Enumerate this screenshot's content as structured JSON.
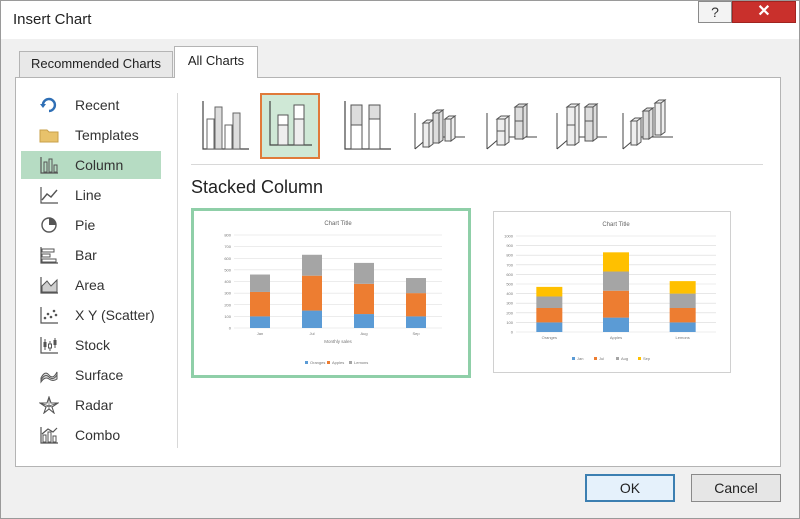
{
  "dialog": {
    "title": "Insert Chart",
    "help_label": "?",
    "close_label": "✕"
  },
  "tabs": [
    {
      "label": "Recommended Charts",
      "selected": false
    },
    {
      "label": "All Charts",
      "selected": true
    }
  ],
  "sidebar": {
    "items": [
      {
        "label": "Recent",
        "icon": "recent-icon"
      },
      {
        "label": "Templates",
        "icon": "folder-icon"
      },
      {
        "label": "Column",
        "icon": "column-chart-icon",
        "selected": true
      },
      {
        "label": "Line",
        "icon": "line-chart-icon"
      },
      {
        "label": "Pie",
        "icon": "pie-chart-icon"
      },
      {
        "label": "Bar",
        "icon": "bar-chart-icon"
      },
      {
        "label": "Area",
        "icon": "area-chart-icon"
      },
      {
        "label": "X Y (Scatter)",
        "icon": "scatter-chart-icon"
      },
      {
        "label": "Stock",
        "icon": "stock-chart-icon"
      },
      {
        "label": "Surface",
        "icon": "surface-chart-icon"
      },
      {
        "label": "Radar",
        "icon": "radar-chart-icon"
      },
      {
        "label": "Combo",
        "icon": "combo-chart-icon"
      }
    ]
  },
  "subtypes": [
    {
      "icon": "clustered-column-icon"
    },
    {
      "icon": "stacked-column-icon",
      "selected": true
    },
    {
      "icon": "100-stacked-column-icon"
    },
    {
      "icon": "3d-clustered-column-icon"
    },
    {
      "icon": "3d-stacked-column-icon"
    },
    {
      "icon": "3d-100-stacked-column-icon"
    },
    {
      "icon": "3d-column-icon"
    }
  ],
  "main": {
    "heading": "Stacked Column"
  },
  "buttons": {
    "ok": "OK",
    "cancel": "Cancel"
  },
  "colors": {
    "blue": "#5b9bd5",
    "orange": "#ed7d31",
    "gray": "#a5a5a5",
    "yellow": "#ffc000",
    "selected": "#b6dcc3",
    "accent": "#e07a3a"
  },
  "chart_data": [
    {
      "type": "bar",
      "stacked": true,
      "title": "Chart Title",
      "xlabel": "Monthly sales",
      "categories": [
        "Jan",
        "Jul",
        "Aug",
        "Sep"
      ],
      "series": [
        {
          "name": "Oranges",
          "values": [
            100,
            150,
            120,
            100
          ]
        },
        {
          "name": "Apples",
          "values": [
            210,
            300,
            260,
            200
          ]
        },
        {
          "name": "Lemons",
          "values": [
            150,
            180,
            180,
            130
          ]
        }
      ],
      "ylim": [
        0,
        800
      ],
      "yticks": [
        "0",
        "100",
        "200",
        "300",
        "400",
        "500",
        "600",
        "700",
        "800"
      ],
      "legend": "bottom"
    },
    {
      "type": "bar",
      "stacked": true,
      "title": "Chart Title",
      "categories": [
        "Oranges",
        "Apples",
        "Lemons"
      ],
      "series": [
        {
          "name": "Jan",
          "values": [
            100,
            150,
            100
          ]
        },
        {
          "name": "Jul",
          "values": [
            150,
            280,
            150
          ]
        },
        {
          "name": "Aug",
          "values": [
            120,
            200,
            150
          ]
        },
        {
          "name": "Sep",
          "values": [
            100,
            200,
            130
          ]
        }
      ],
      "ylim": [
        0,
        1000
      ],
      "yticks": [
        "0",
        "100",
        "200",
        "300",
        "400",
        "500",
        "600",
        "700",
        "800",
        "900",
        "1000"
      ],
      "legend": "bottom"
    }
  ]
}
